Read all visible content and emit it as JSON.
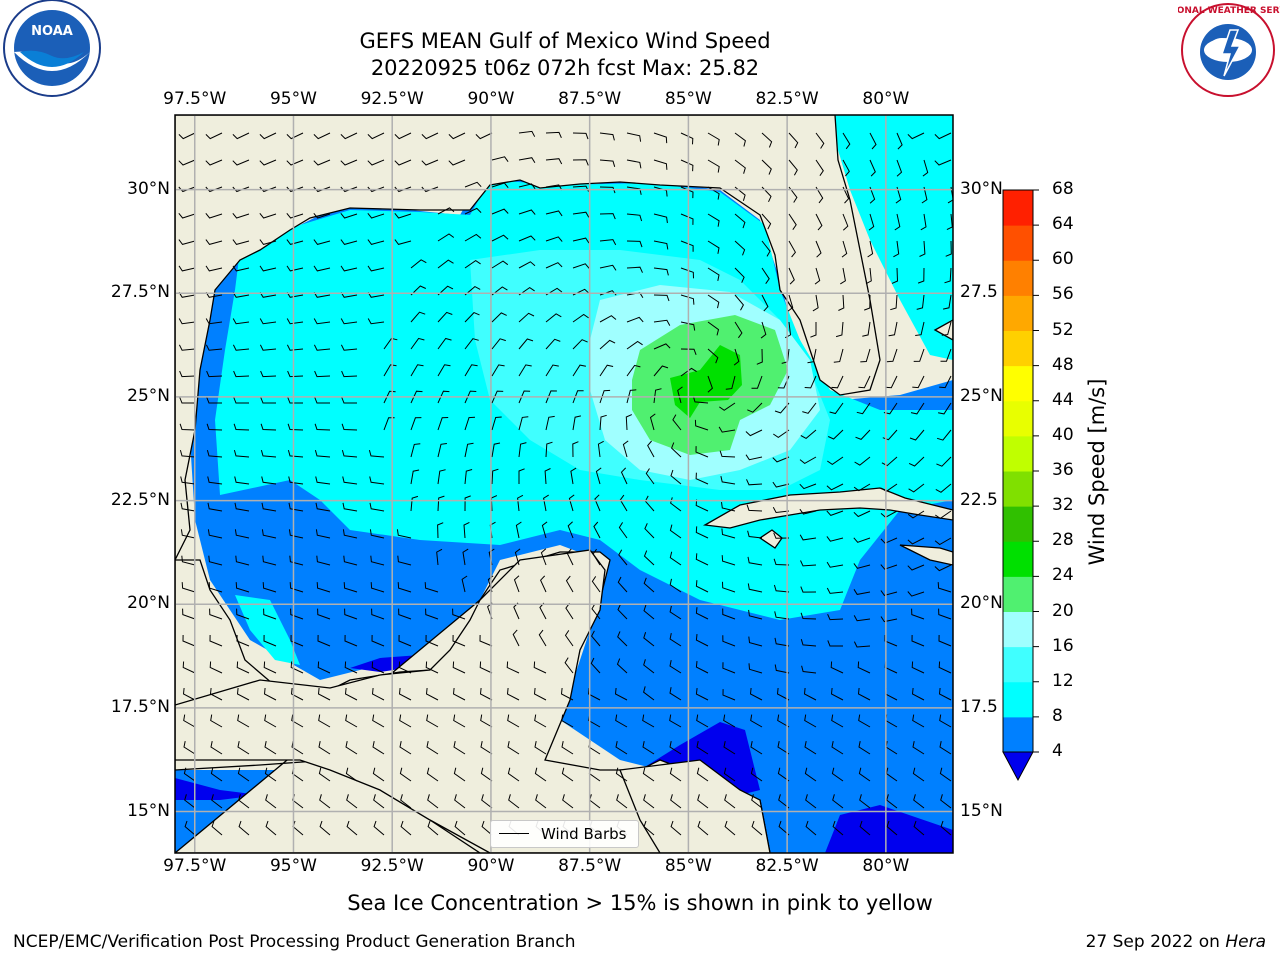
{
  "header": {
    "title_line1": "GEFS MEAN Gulf of Mexico Wind Speed",
    "title_line2": "20220925 t06z 072h fcst   Max: 25.82"
  },
  "axes": {
    "lon_labels": [
      "97.5°W",
      "95°W",
      "92.5°W",
      "90°W",
      "87.5°W",
      "85°W",
      "82.5°W",
      "80°W"
    ],
    "lon_values": [
      -97.5,
      -95,
      -92.5,
      -90,
      -87.5,
      -85,
      -82.5,
      -80
    ],
    "lat_labels": [
      "30°N",
      "27.5°N",
      "25°N",
      "22.5°N",
      "20°N",
      "17.5°N",
      "15°N"
    ],
    "lat_right_labels": [
      "30°N",
      "27.5",
      "25°N",
      "22.5",
      "20°N",
      "17.5",
      "15°N"
    ],
    "lat_values": [
      30,
      27.5,
      25,
      22.5,
      20,
      17.5,
      15
    ],
    "lon_range": [
      -98,
      -78.3
    ],
    "lat_range": [
      14,
      31.8
    ]
  },
  "legend": {
    "label": "Wind Barbs"
  },
  "colorbar": {
    "title": "Wind Speed [m/s]",
    "levels": [
      4,
      8,
      12,
      16,
      20,
      24,
      28,
      32,
      36,
      40,
      44,
      48,
      52,
      56,
      60,
      64,
      68
    ],
    "colors": [
      "#0080ff",
      "#00ffff",
      "#40ffff",
      "#a0ffff",
      "#50f070",
      "#00e000",
      "#30c000",
      "#80e000",
      "#c0ff00",
      "#e8ff00",
      "#ffff00",
      "#ffd000",
      "#ffa800",
      "#ff8000",
      "#ff5000",
      "#ff2000"
    ],
    "under_color": "#0000ee"
  },
  "map": {
    "land_color": "#efeedd",
    "max_wind": "25.82"
  },
  "footer": {
    "note": "Sea Ice Concentration > 15% is shown in pink to yellow",
    "credit": "NCEP/EMC/Verification Post Processing Product Generation Branch",
    "date": "27 Sep 2022 on ",
    "host": "Hera"
  },
  "logos": {
    "left": "NOAA",
    "right": "NATIONAL WEATHER SERVICE"
  }
}
